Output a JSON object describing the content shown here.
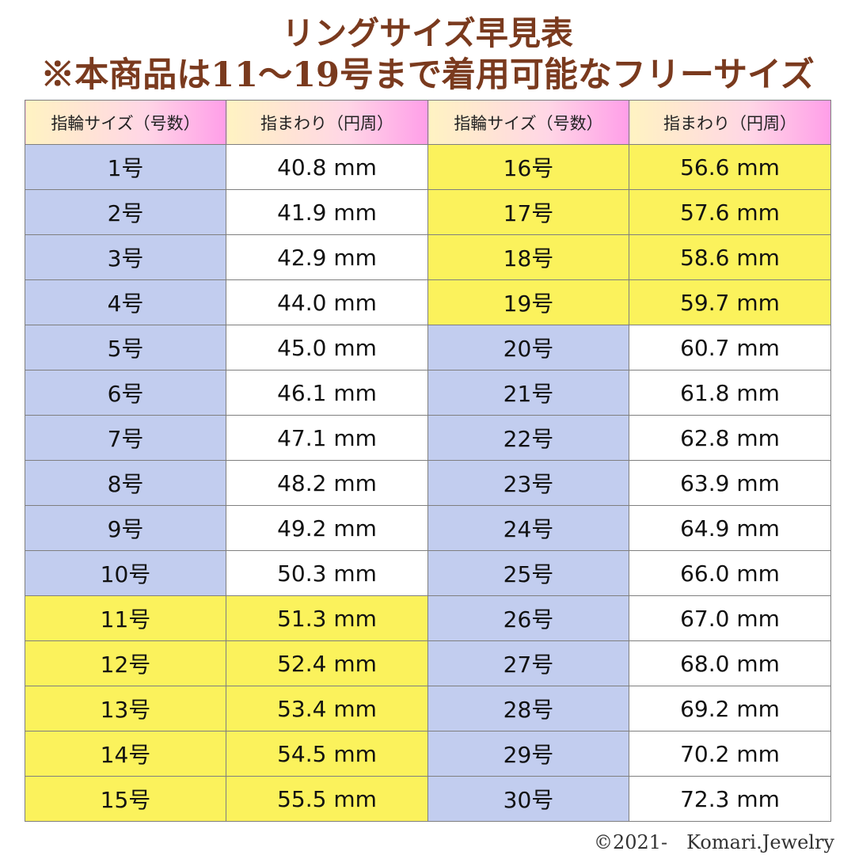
{
  "title": {
    "line1": "リングサイズ早見表",
    "line2": "※本商品は11〜19号まで着用可能なフリーサイズ"
  },
  "table": {
    "headers": [
      "指輪サイズ（号数）",
      "指まわり（円周）",
      "指輪サイズ（号数）",
      "指まわり（円周）"
    ],
    "rows": [
      {
        "left_size": "1号",
        "left_mm": "40.8 mm",
        "left_hl": false,
        "right_size": "16号",
        "right_mm": "56.6 mm",
        "right_hl": true
      },
      {
        "left_size": "2号",
        "left_mm": "41.9 mm",
        "left_hl": false,
        "right_size": "17号",
        "right_mm": "57.6 mm",
        "right_hl": true
      },
      {
        "left_size": "3号",
        "left_mm": "42.9 mm",
        "left_hl": false,
        "right_size": "18号",
        "right_mm": "58.6 mm",
        "right_hl": true
      },
      {
        "left_size": "4号",
        "left_mm": "44.0 mm",
        "left_hl": false,
        "right_size": "19号",
        "right_mm": "59.7 mm",
        "right_hl": true
      },
      {
        "left_size": "5号",
        "left_mm": "45.0 mm",
        "left_hl": false,
        "right_size": "20号",
        "right_mm": "60.7 mm",
        "right_hl": false
      },
      {
        "left_size": "6号",
        "left_mm": "46.1 mm",
        "left_hl": false,
        "right_size": "21号",
        "right_mm": "61.8 mm",
        "right_hl": false
      },
      {
        "left_size": "7号",
        "left_mm": "47.1 mm",
        "left_hl": false,
        "right_size": "22号",
        "right_mm": "62.8 mm",
        "right_hl": false
      },
      {
        "left_size": "8号",
        "left_mm": "48.2 mm",
        "left_hl": false,
        "right_size": "23号",
        "right_mm": "63.9 mm",
        "right_hl": false
      },
      {
        "left_size": "9号",
        "left_mm": "49.2 mm",
        "left_hl": false,
        "right_size": "24号",
        "right_mm": "64.9 mm",
        "right_hl": false
      },
      {
        "left_size": "10号",
        "left_mm": "50.3 mm",
        "left_hl": false,
        "right_size": "25号",
        "right_mm": "66.0 mm",
        "right_hl": false
      },
      {
        "left_size": "11号",
        "left_mm": "51.3 mm",
        "left_hl": true,
        "right_size": "26号",
        "right_mm": "67.0 mm",
        "right_hl": false
      },
      {
        "left_size": "12号",
        "left_mm": "52.4 mm",
        "left_hl": true,
        "right_size": "27号",
        "right_mm": "68.0 mm",
        "right_hl": false
      },
      {
        "left_size": "13号",
        "left_mm": "53.4 mm",
        "left_hl": true,
        "right_size": "28号",
        "right_mm": "69.2 mm",
        "right_hl": false
      },
      {
        "left_size": "14号",
        "left_mm": "54.5 mm",
        "left_hl": true,
        "right_size": "29号",
        "right_mm": "70.2 mm",
        "right_hl": false
      },
      {
        "left_size": "15号",
        "left_mm": "55.5 mm",
        "left_hl": true,
        "right_size": "30号",
        "right_mm": "72.3 mm",
        "right_hl": false
      }
    ]
  },
  "colors": {
    "title": "#7a3a1e",
    "size_cell": "#c2cdef",
    "highlight": "#fbf25c",
    "border": "#7f7f7f"
  },
  "footer": {
    "copyright": "©2021-　Komari.Jewelry"
  }
}
